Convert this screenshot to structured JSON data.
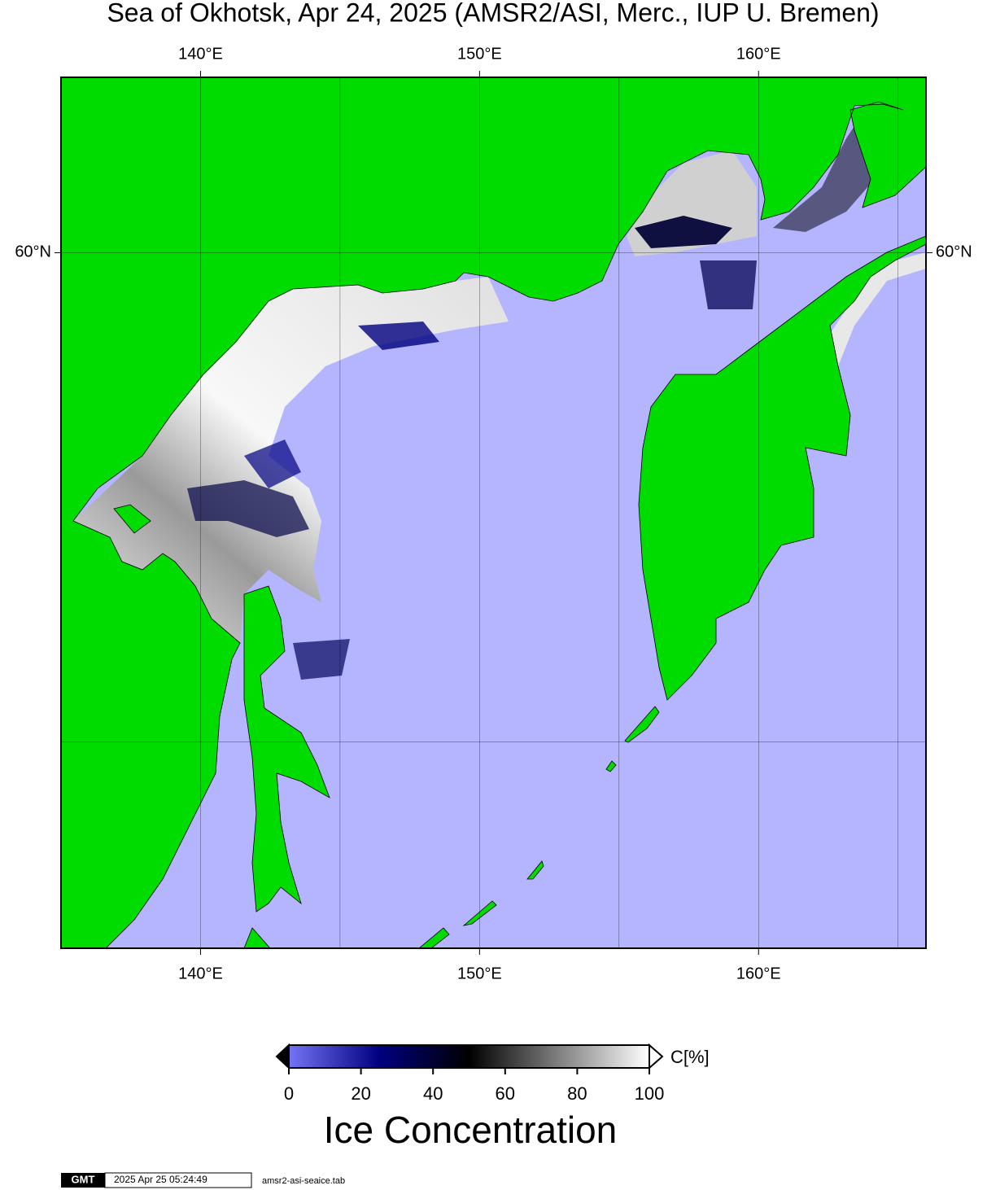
{
  "title": "Sea of Okhotsk, Apr 24, 2025 (AMSR2/ASI, Merc., IUP U. Bremen)",
  "map": {
    "lonlim": [
      135,
      166
    ],
    "latlim": [
      45,
      63
    ],
    "grid_step": [
      5,
      10
    ],
    "ocean_color": "#b4b4ff",
    "land_color": "#00dc00",
    "lon_ticks": [
      {
        "value": 140,
        "label": "140°E"
      },
      {
        "value": 150,
        "label": "150°E"
      },
      {
        "value": 160,
        "label": "160°E"
      }
    ],
    "lat_ticks": [
      {
        "value": 60,
        "label": "60°N"
      }
    ]
  },
  "colorbar": {
    "label": "C[%]",
    "title": "Ice Concentration",
    "range": [
      0,
      100
    ],
    "ticks": [
      0,
      20,
      40,
      60,
      80,
      100
    ],
    "colors": [
      "#7474f4",
      "#000080",
      "#000000",
      "#808080",
      "#ffffff"
    ]
  },
  "footer": {
    "logo": "GMT",
    "timestamp": "2025 Apr 25 05:24:49",
    "file": "amsr2-asi-seaice.tab"
  }
}
